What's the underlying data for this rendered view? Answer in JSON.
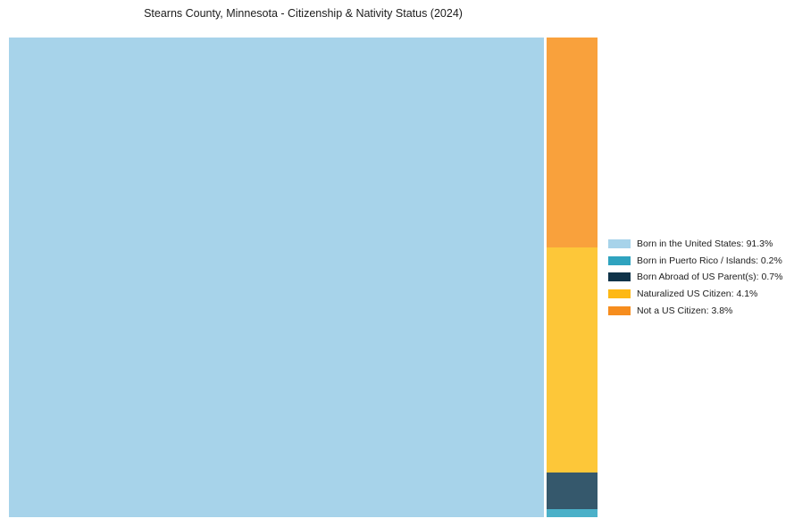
{
  "title": "Stearns County, Minnesota - Citizenship & Nativity Status (2024)",
  "chart_data": {
    "type": "treemap",
    "title": "Stearns County, Minnesota - Citizenship & Nativity Status (2024)",
    "categories": [
      "Born in the United States",
      "Born in Puerto Rico / Islands",
      "Born Abroad of US Parent(s)",
      "Naturalized US Citizen",
      "Not a US Citizen"
    ],
    "values": [
      91.3,
      0.2,
      0.7,
      4.1,
      3.8
    ],
    "unit": "%",
    "legend_position": "right",
    "layout_hint": "large rect left for majority; right column stacked top-to-bottom: Not a US Citizen, Naturalized US Citizen, Born Abroad of US Parent(s), Born in Puerto Rico / Islands"
  },
  "treemap": {
    "rects": [
      {
        "category": "Born in the United States",
        "value_pct": 91.3,
        "fill": "#A7D3EA"
      },
      {
        "category": "Not a US Citizen",
        "value_pct": 3.8,
        "fill": "#F9A13C"
      },
      {
        "category": "Naturalized US Citizen",
        "value_pct": 4.1,
        "fill": "#FDC739"
      },
      {
        "category": "Born Abroad of US Parent(s)",
        "value_pct": 0.7,
        "fill": "#35586C"
      },
      {
        "category": "Born in Puerto Rico / Islands",
        "value_pct": 0.2,
        "fill": "#4BB0C8"
      }
    ]
  },
  "legend": {
    "items": [
      {
        "label": "Born in the United States: 91.3%",
        "color": "#A7D3EA"
      },
      {
        "label": "Born in Puerto Rico / Islands: 0.2%",
        "color": "#2FA3BF"
      },
      {
        "label": "Born Abroad of US Parent(s): 0.7%",
        "color": "#0F3349"
      },
      {
        "label": "Naturalized US Citizen: 4.1%",
        "color": "#FDB815"
      },
      {
        "label": "Not a US Citizen: 3.8%",
        "color": "#F68D1E"
      }
    ]
  }
}
